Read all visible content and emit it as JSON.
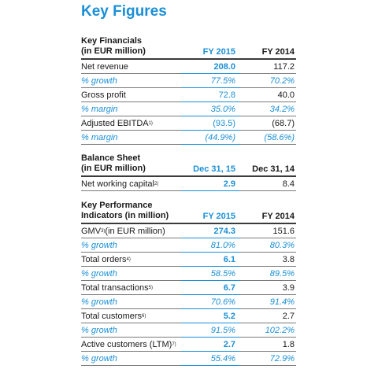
{
  "title": "Key Figures",
  "sections": [
    {
      "label_l1": "Key Financials",
      "label_l2": "(in EUR million)",
      "col1": "FY 2015",
      "col2": "FY 2014",
      "rows": [
        {
          "label": "Net revenue",
          "sup": "",
          "v1": "208.0",
          "v2": "117.2",
          "italic": false
        },
        {
          "label": "% growth",
          "sup": "",
          "v1": "77.5%",
          "v2": "70.2%",
          "italic": true
        },
        {
          "label": "Gross profit",
          "sup": "",
          "v1": "72.8",
          "v2": "40.0",
          "italic": false
        },
        {
          "label": "% margin",
          "sup": "",
          "v1": "35.0%",
          "v2": "34.2%",
          "italic": true
        },
        {
          "label": "Adjusted EBITDA",
          "sup": "1)",
          "v1": "(93.5)",
          "v2": "(68.7)",
          "italic": false
        },
        {
          "label": "% margin",
          "sup": "",
          "v1": "(44.9%)",
          "v2": "(58.6%)",
          "italic": true
        }
      ]
    },
    {
      "label_l1": "Balance Sheet",
      "label_l2": "(in EUR million)",
      "col1": "Dec 31, 15",
      "col2": "Dec 31, 14",
      "rows": [
        {
          "label": "Net working capital",
          "sup": "2)",
          "v1": "2.9",
          "v2": "8.4",
          "italic": false
        }
      ]
    },
    {
      "label_l1": "Key Performance",
      "label_l2": "Indicators (in million)",
      "col1": "FY 2015",
      "col2": "FY 2014",
      "rows": [
        {
          "label": "GMV",
          "sup": "3)",
          "label_suffix": " (in EUR million)",
          "v1": "274.3",
          "v2": "151.6",
          "italic": false
        },
        {
          "label": "% growth",
          "sup": "",
          "v1": "81.0%",
          "v2": "80.3%",
          "italic": true
        },
        {
          "label": "Total orders",
          "sup": "4)",
          "v1": "6.1",
          "v2": "3.8",
          "italic": false
        },
        {
          "label": "% growth",
          "sup": "",
          "v1": "58.5%",
          "v2": "89.5%",
          "italic": true
        },
        {
          "label": "Total transactions",
          "sup": "5)",
          "v1": "6.7",
          "v2": "3.9",
          "italic": false
        },
        {
          "label": "% growth",
          "sup": "",
          "v1": "70.6%",
          "v2": "91.4%",
          "italic": true
        },
        {
          "label": "Total customers",
          "sup": "6)",
          "v1": "5.2",
          "v2": "2.7",
          "italic": false
        },
        {
          "label": "% growth",
          "sup": "",
          "v1": "91.5%",
          "v2": "102.2%",
          "italic": true
        },
        {
          "label": "Active customers (LTM)",
          "sup": "7)",
          "v1": "2.7",
          "v2": "1.8",
          "italic": false
        },
        {
          "label": "% growth",
          "sup": "",
          "v1": "55.4%",
          "v2": "72.9%",
          "italic": true
        }
      ]
    }
  ]
}
